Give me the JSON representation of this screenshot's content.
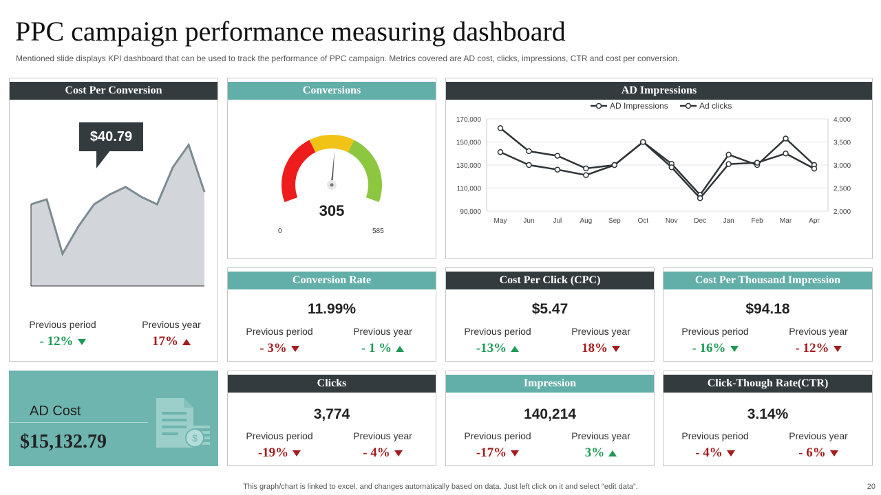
{
  "header": {
    "title": "PPC campaign performance measuring dashboard",
    "subtitle": "Mentioned slide displays KPI dashboard that can be used to track the performance of PPC campaign. Metrics covered are AD cost, clicks, impressions, CTR and cost per conversion."
  },
  "colors": {
    "dark": "#343b3f",
    "teal": "#62aea8",
    "red": "#a51c1c",
    "green": "#1f9a55",
    "gauge_red": "#ee1c1c",
    "gauge_yellow": "#f2c317",
    "gauge_green": "#8dc63f"
  },
  "cost_per_conversion": {
    "title": "Cost Per Conversion",
    "callout": "$40.79",
    "prev_period_label": "Previous  period",
    "prev_period_value": "- 12%",
    "prev_year_label": "Previous  year",
    "prev_year_value": "17%"
  },
  "conversions": {
    "title": "Conversions",
    "value": "305",
    "min": "0",
    "max": "585"
  },
  "ad_impressions": {
    "title": "AD Impressions"
  },
  "conversion_rate": {
    "title": "Conversion Rate",
    "value": "11.99%",
    "prev_period_label": "Previous  period",
    "prev_period_value": "- 3%",
    "prev_year_label": "Previous  year",
    "prev_year_value": "- 1 %"
  },
  "cpc": {
    "title": "Cost Per Click (CPC)",
    "value": "$5.47",
    "prev_period_label": "Previous  period",
    "prev_period_value": "-13%",
    "prev_year_label": "Previous  year",
    "prev_year_value": "18%"
  },
  "cpm": {
    "title": "Cost Per Thousand Impression",
    "value": "$94.18",
    "prev_period_label": "Previous  period",
    "prev_period_value": "- 16%",
    "prev_year_label": "Previous  year",
    "prev_year_value": "- 12%"
  },
  "clicks": {
    "title": "Clicks",
    "value": "3,774",
    "prev_period_label": "Previous  period",
    "prev_period_value": "-19%",
    "prev_year_label": "Previous  year",
    "prev_year_value": "- 4%"
  },
  "impression": {
    "title": "Impression",
    "value": "140,214",
    "prev_period_label": "Previous  period",
    "prev_period_value": "-17%",
    "prev_year_label": "Previous  year",
    "prev_year_value": "3%"
  },
  "ctr": {
    "title": "Click-Though Rate(CTR)",
    "value": "3.14%",
    "prev_period_label": "Previous  period",
    "prev_period_value": "- 4%",
    "prev_year_label": "Previous  year",
    "prev_year_value": "- 6%"
  },
  "ad_cost": {
    "label": "AD Cost",
    "value": "$15,132.79"
  },
  "footer": {
    "note": "This graph/chart is linked to excel,  and changes automatically based on data. Just left click on it and select “edit data”.",
    "page": "20"
  },
  "chart_data": [
    {
      "type": "area",
      "title": "Cost Per Conversion",
      "x": [
        1,
        2,
        3,
        4,
        5,
        6,
        7,
        8,
        9,
        10,
        11,
        12
      ],
      "values": [
        33,
        35,
        13,
        24,
        33,
        37,
        40,
        36,
        33,
        48,
        57,
        38
      ],
      "ylim": [
        0,
        70
      ],
      "grid": false
    },
    {
      "type": "gauge",
      "title": "Conversions",
      "value": 305,
      "min": 0,
      "max": 585,
      "bands": [
        "red",
        "yellow",
        "green"
      ]
    },
    {
      "type": "line",
      "title": "AD Impressions",
      "categories": [
        "May",
        "Jun",
        "Jul",
        "Aug",
        "Sep",
        "Oct",
        "Nov",
        "Dec",
        "Jan",
        "Feb",
        "Mar",
        "Apr"
      ],
      "series": [
        {
          "name": "AD Impressions",
          "axis": "left",
          "values": [
            162000,
            142000,
            138000,
            127000,
            130000,
            150000,
            131000,
            104000,
            139000,
            130000,
            153000,
            130000
          ]
        },
        {
          "name": "Ad clicks",
          "axis": "right",
          "values": [
            3280,
            3000,
            2900,
            2780,
            3000,
            3500,
            2950,
            2280,
            3020,
            3050,
            3250,
            2920
          ]
        }
      ],
      "y_left": {
        "range": [
          90000,
          170000
        ],
        "ticks": [
          "90,000",
          "110,000",
          "130,000",
          "150,000",
          "170,000"
        ]
      },
      "y_right": {
        "range": [
          2000,
          4000
        ],
        "ticks": [
          "2,000",
          "2,500",
          "3,000",
          "3,500",
          "4,000"
        ]
      },
      "legend": "top",
      "grid": true
    }
  ]
}
